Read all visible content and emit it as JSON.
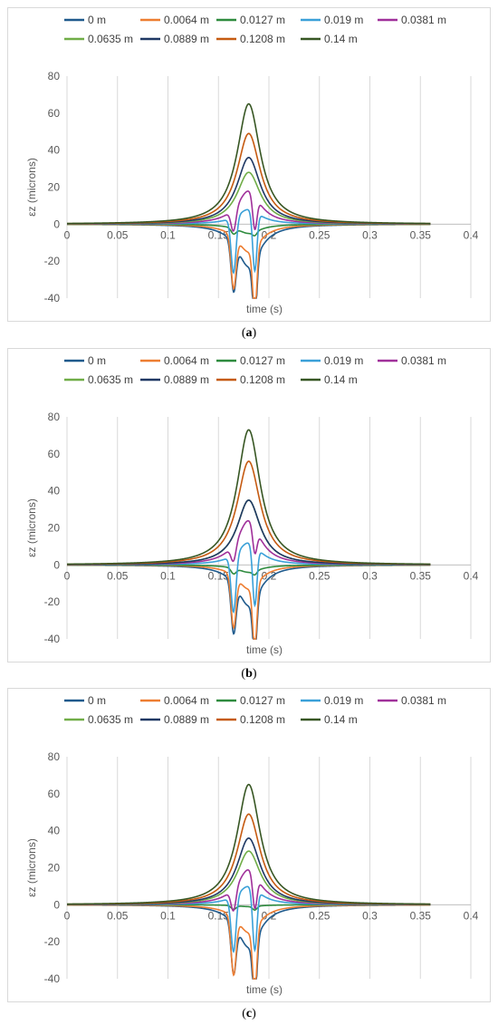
{
  "chart_data": [
    {
      "type": "line",
      "caption": "a",
      "xlabel": "time (s)",
      "ylabel": "εz (microns)",
      "xlim": [
        0,
        0.4
      ],
      "ylim": [
        -40,
        80
      ],
      "xticks": [
        "0",
        "0.05",
        "0.1",
        "0.15",
        "0.2",
        "0.25",
        "0.3",
        "0.35",
        "0.4"
      ],
      "yticks": [
        "-40",
        "-20",
        "0",
        "20",
        "40",
        "60",
        "80"
      ],
      "grid": "vertical",
      "legend": "top",
      "series": [
        {
          "name": "0 m",
          "color": "#1f5a8c",
          "peak": -23,
          "spikes": [
            -26,
            -33
          ]
        },
        {
          "name": "0.0064 m",
          "color": "#ed7d31",
          "peak": -15,
          "spikes": [
            -28,
            -35
          ]
        },
        {
          "name": "0.0127 m",
          "color": "#2e8b3e",
          "peak": -5,
          "spikes": [
            -3,
            -2
          ]
        },
        {
          "name": "0.019 m",
          "color": "#3aa0d8",
          "peak": 8,
          "spikes": [
            -30,
            -32
          ]
        },
        {
          "name": "0.0381 m",
          "color": "#a0309a",
          "peak": 18,
          "spikes": [
            -12,
            -18
          ]
        },
        {
          "name": "0.0635 m",
          "color": "#70ad47",
          "peak": 28,
          "spikes": [
            0,
            0
          ]
        },
        {
          "name": "0.0889 m",
          "color": "#1f3864",
          "peak": 36,
          "spikes": [
            0,
            0
          ]
        },
        {
          "name": "0.1208 m",
          "color": "#c55a11",
          "peak": 49,
          "spikes": [
            0,
            0
          ]
        },
        {
          "name": "0.14 m",
          "color": "#375623",
          "peak": 65,
          "spikes": [
            0,
            0
          ]
        }
      ]
    },
    {
      "type": "line",
      "caption": "b",
      "xlabel": "time (s)",
      "ylabel": "εz (microns)",
      "xlim": [
        0,
        0.4
      ],
      "ylim": [
        -40,
        80
      ],
      "xticks": [
        "0",
        "0.05",
        "0.1",
        "0.15",
        "0.2",
        "0.25",
        "0.3",
        "0.35",
        "0.4"
      ],
      "yticks": [
        "-40",
        "-20",
        "0",
        "20",
        "40",
        "60",
        "80"
      ],
      "grid": "vertical",
      "legend": "top",
      "series": [
        {
          "name": "0 m",
          "color": "#1f5a8c",
          "peak": -22,
          "spikes": [
            -27,
            -30
          ]
        },
        {
          "name": "0.0064 m",
          "color": "#ed7d31",
          "peak": -13,
          "spikes": [
            -28,
            -34
          ]
        },
        {
          "name": "0.0127 m",
          "color": "#2e8b3e",
          "peak": -4,
          "spikes": [
            -3,
            -2
          ]
        },
        {
          "name": "0.019 m",
          "color": "#3aa0d8",
          "peak": 12,
          "spikes": [
            -31,
            -32
          ]
        },
        {
          "name": "0.0381 m",
          "color": "#a0309a",
          "peak": 24,
          "spikes": [
            -9,
            -14
          ]
        },
        {
          "name": "0.0635 m",
          "color": "#70ad47",
          "peak": 35,
          "spikes": [
            0,
            0
          ]
        },
        {
          "name": "0.0889 m",
          "color": "#1f3864",
          "peak": 35,
          "spikes": [
            0,
            0
          ]
        },
        {
          "name": "0.1208 m",
          "color": "#c55a11",
          "peak": 56,
          "spikes": [
            0,
            0
          ]
        },
        {
          "name": "0.14 m",
          "color": "#375623",
          "peak": 73,
          "spikes": [
            0,
            0
          ]
        }
      ]
    },
    {
      "type": "line",
      "caption": "c",
      "xlabel": "time (s)",
      "ylabel": "εz (microns)",
      "xlim": [
        0,
        0.4
      ],
      "ylim": [
        -40,
        80
      ],
      "xticks": [
        "0",
        "0.05",
        "0.1",
        "0.15",
        "0.2",
        "0.25",
        "0.3",
        "0.35",
        "0.4"
      ],
      "yticks": [
        "-40",
        "-20",
        "0",
        "20",
        "40",
        "60",
        "80"
      ],
      "grid": "vertical",
      "legend": "top",
      "series": [
        {
          "name": "0 m",
          "color": "#1f5a8c",
          "peak": -23,
          "spikes": [
            -27,
            -33
          ]
        },
        {
          "name": "0.0064 m",
          "color": "#ed7d31",
          "peak": -15,
          "spikes": [
            -31,
            -35
          ]
        },
        {
          "name": "0.0127 m",
          "color": "#2e8b3e",
          "peak": -1,
          "spikes": [
            -2,
            -2
          ]
        },
        {
          "name": "0.019 m",
          "color": "#3aa0d8",
          "peak": 10,
          "spikes": [
            -30,
            -33
          ]
        },
        {
          "name": "0.0381 m",
          "color": "#a0309a",
          "peak": 19,
          "spikes": [
            -12,
            -18
          ]
        },
        {
          "name": "0.0635 m",
          "color": "#70ad47",
          "peak": 29,
          "spikes": [
            0,
            0
          ]
        },
        {
          "name": "0.0889 m",
          "color": "#1f3864",
          "peak": 36,
          "spikes": [
            0,
            0
          ]
        },
        {
          "name": "0.1208 m",
          "color": "#c55a11",
          "peak": 49,
          "spikes": [
            0,
            0
          ]
        },
        {
          "name": "0.14 m",
          "color": "#375623",
          "peak": 65,
          "spikes": [
            0,
            0
          ]
        }
      ]
    }
  ]
}
